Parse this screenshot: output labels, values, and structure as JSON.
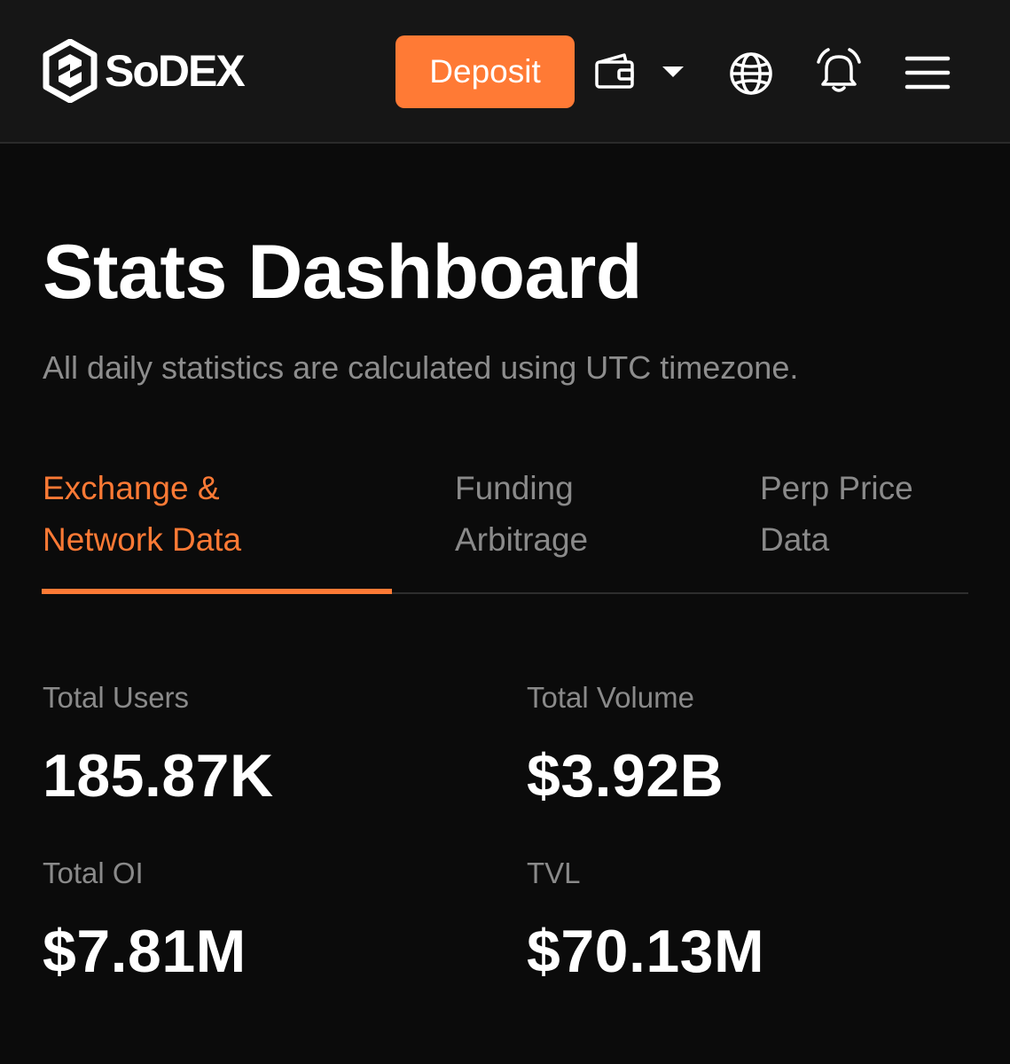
{
  "header": {
    "brand": "SoDEX",
    "deposit_label": "Deposit",
    "icons": [
      "cube-logo-icon",
      "wallet-icon",
      "chevron-down-icon",
      "globe-icon",
      "bell-icon",
      "hamburger-menu-icon"
    ]
  },
  "page": {
    "title": "Stats Dashboard",
    "subtitle": "All daily statistics are calculated using UTC timezone."
  },
  "tabs": [
    {
      "line1": "Exchange &",
      "line2": "Network Data",
      "active": true
    },
    {
      "line1": "Funding",
      "line2": "Arbitrage",
      "active": false
    },
    {
      "line1": "Perp Price",
      "line2": "Data",
      "active": false
    }
  ],
  "stats": [
    {
      "label": "Total Users",
      "value": "185.87K"
    },
    {
      "label": "Total Volume",
      "value": "$3.92B"
    },
    {
      "label": "Total OI",
      "value": "$7.81M"
    },
    {
      "label": "TVL",
      "value": "$70.13M"
    }
  ],
  "colors": {
    "accent": "#ff7a35",
    "background": "#0b0b0b",
    "header_background": "#161616",
    "muted_text": "#8a8a8a"
  }
}
